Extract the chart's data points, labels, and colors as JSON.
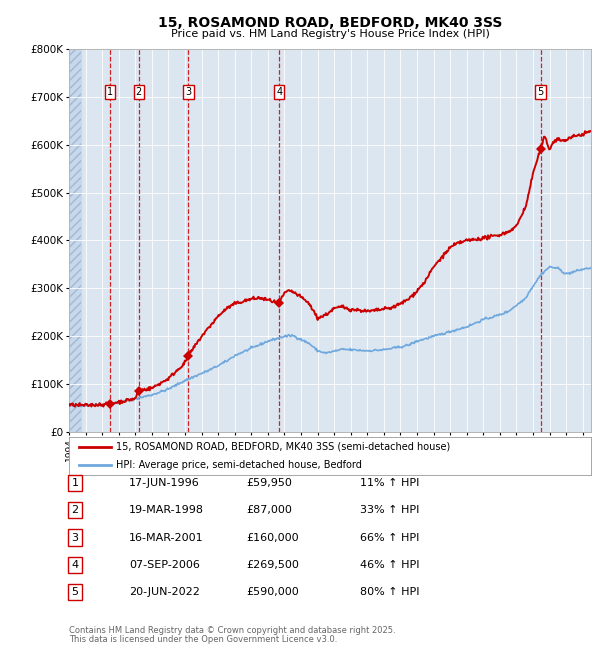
{
  "title": "15, ROSAMOND ROAD, BEDFORD, MK40 3SS",
  "subtitle": "Price paid vs. HM Land Registry's House Price Index (HPI)",
  "legend_line1": "15, ROSAMOND ROAD, BEDFORD, MK40 3SS (semi-detached house)",
  "legend_line2": "HPI: Average price, semi-detached house, Bedford",
  "footer_line1": "Contains HM Land Registry data © Crown copyright and database right 2025.",
  "footer_line2": "This data is licensed under the Open Government Licence v3.0.",
  "transactions": [
    {
      "num": 1,
      "date": "17-JUN-1996",
      "year": 1996.46,
      "price": 59950,
      "pct": "11% ↑ HPI"
    },
    {
      "num": 2,
      "date": "19-MAR-1998",
      "year": 1998.21,
      "price": 87000,
      "pct": "33% ↑ HPI"
    },
    {
      "num": 3,
      "date": "16-MAR-2001",
      "year": 2001.21,
      "price": 160000,
      "pct": "66% ↑ HPI"
    },
    {
      "num": 4,
      "date": "07-SEP-2006",
      "year": 2006.68,
      "price": 269500,
      "pct": "46% ↑ HPI"
    },
    {
      "num": 5,
      "date": "20-JUN-2022",
      "year": 2022.46,
      "price": 590000,
      "pct": "80% ↑ HPI"
    }
  ],
  "hpi_color": "#6fa8dc",
  "price_color": "#cc0000",
  "marker_color": "#cc0000",
  "dashed_color": "#cc0000",
  "bg_color": "#dce6f1",
  "hatched_bg": "#c8d8ec",
  "ylim": [
    0,
    800000
  ],
  "xlim_start": 1994.0,
  "xlim_end": 2025.5,
  "yticks": [
    0,
    100000,
    200000,
    300000,
    400000,
    500000,
    600000,
    700000,
    800000
  ],
  "ytick_labels": [
    "£0",
    "£100K",
    "£200K",
    "£300K",
    "£400K",
    "£500K",
    "£600K",
    "£700K",
    "£800K"
  ]
}
